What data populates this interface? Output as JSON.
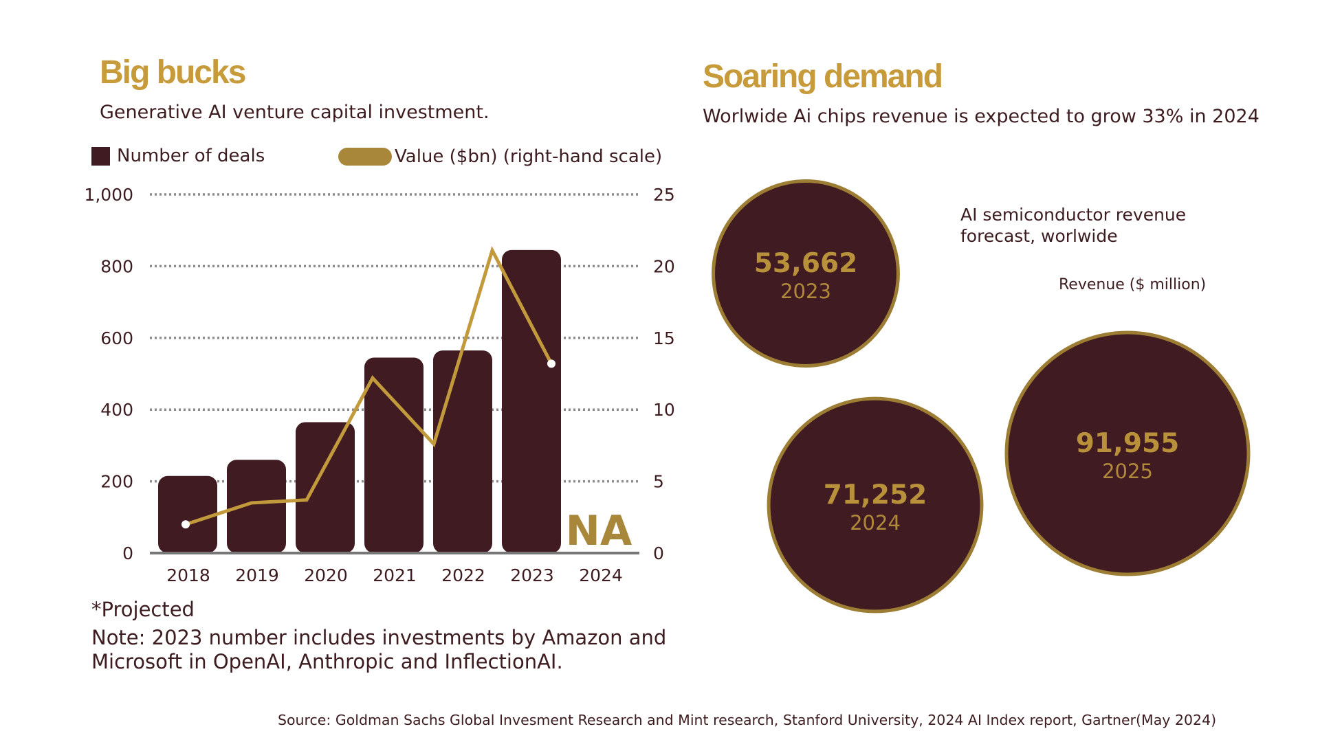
{
  "left": {
    "title": "Big bucks",
    "subtitle": "Generative AI venture capital investment.",
    "legend_deals": "Number of deals",
    "legend_value": "Value ($bn) (right-hand scale)",
    "projected_note": "*Projected",
    "note": "Note: 2023 number includes investments by Amazon and Microsoft in OpenAI, Anthropic and InflectionAI."
  },
  "right": {
    "title": "Soaring demand",
    "subtitle": "Worlwide Ai chips revenue is expected to grow 33% in 2024",
    "bubble_title": "AI semiconductor revenue forecast, worlwide",
    "bubble_unit": "Revenue ($ million)"
  },
  "source": "Source: Goldman Sachs Global Invesment Research and Mint research, Stanford University, 2024 AI Index report, Gartner(May 2024)",
  "colors": {
    "maroon": "#401b21",
    "gold": "#c79a3a",
    "line": "#c29a3c",
    "text": "#3d1c20"
  },
  "chart_data": [
    {
      "type": "bar",
      "categories": [
        "2018",
        "2019",
        "2020",
        "2021",
        "2022",
        "2023",
        "2024"
      ],
      "series": [
        {
          "name": "Number of deals",
          "values": [
            215,
            260,
            365,
            545,
            565,
            845,
            null
          ],
          "axis": "left"
        },
        {
          "name": "Value ($bn) (right-hand scale)",
          "type": "line",
          "values": [
            2,
            3.5,
            3.7,
            12.2,
            7.6,
            21.1,
            13.2
          ],
          "axis": "right"
        }
      ],
      "na_label": "NA",
      "ylim": [
        0,
        1000
      ],
      "yticks": [
        "0",
        "200",
        "400",
        "600",
        "800",
        "1,000"
      ],
      "y2lim": [
        0,
        25
      ],
      "y2ticks": [
        "0",
        "5",
        "10",
        "15",
        "20",
        "25"
      ],
      "grid": true,
      "legend_position": "top"
    },
    {
      "type": "bubble",
      "categories": [
        "2023",
        "2024",
        "2025"
      ],
      "values": [
        53662,
        71252,
        91955
      ],
      "labels": [
        "53,662",
        "71,252",
        "91,955"
      ]
    }
  ]
}
